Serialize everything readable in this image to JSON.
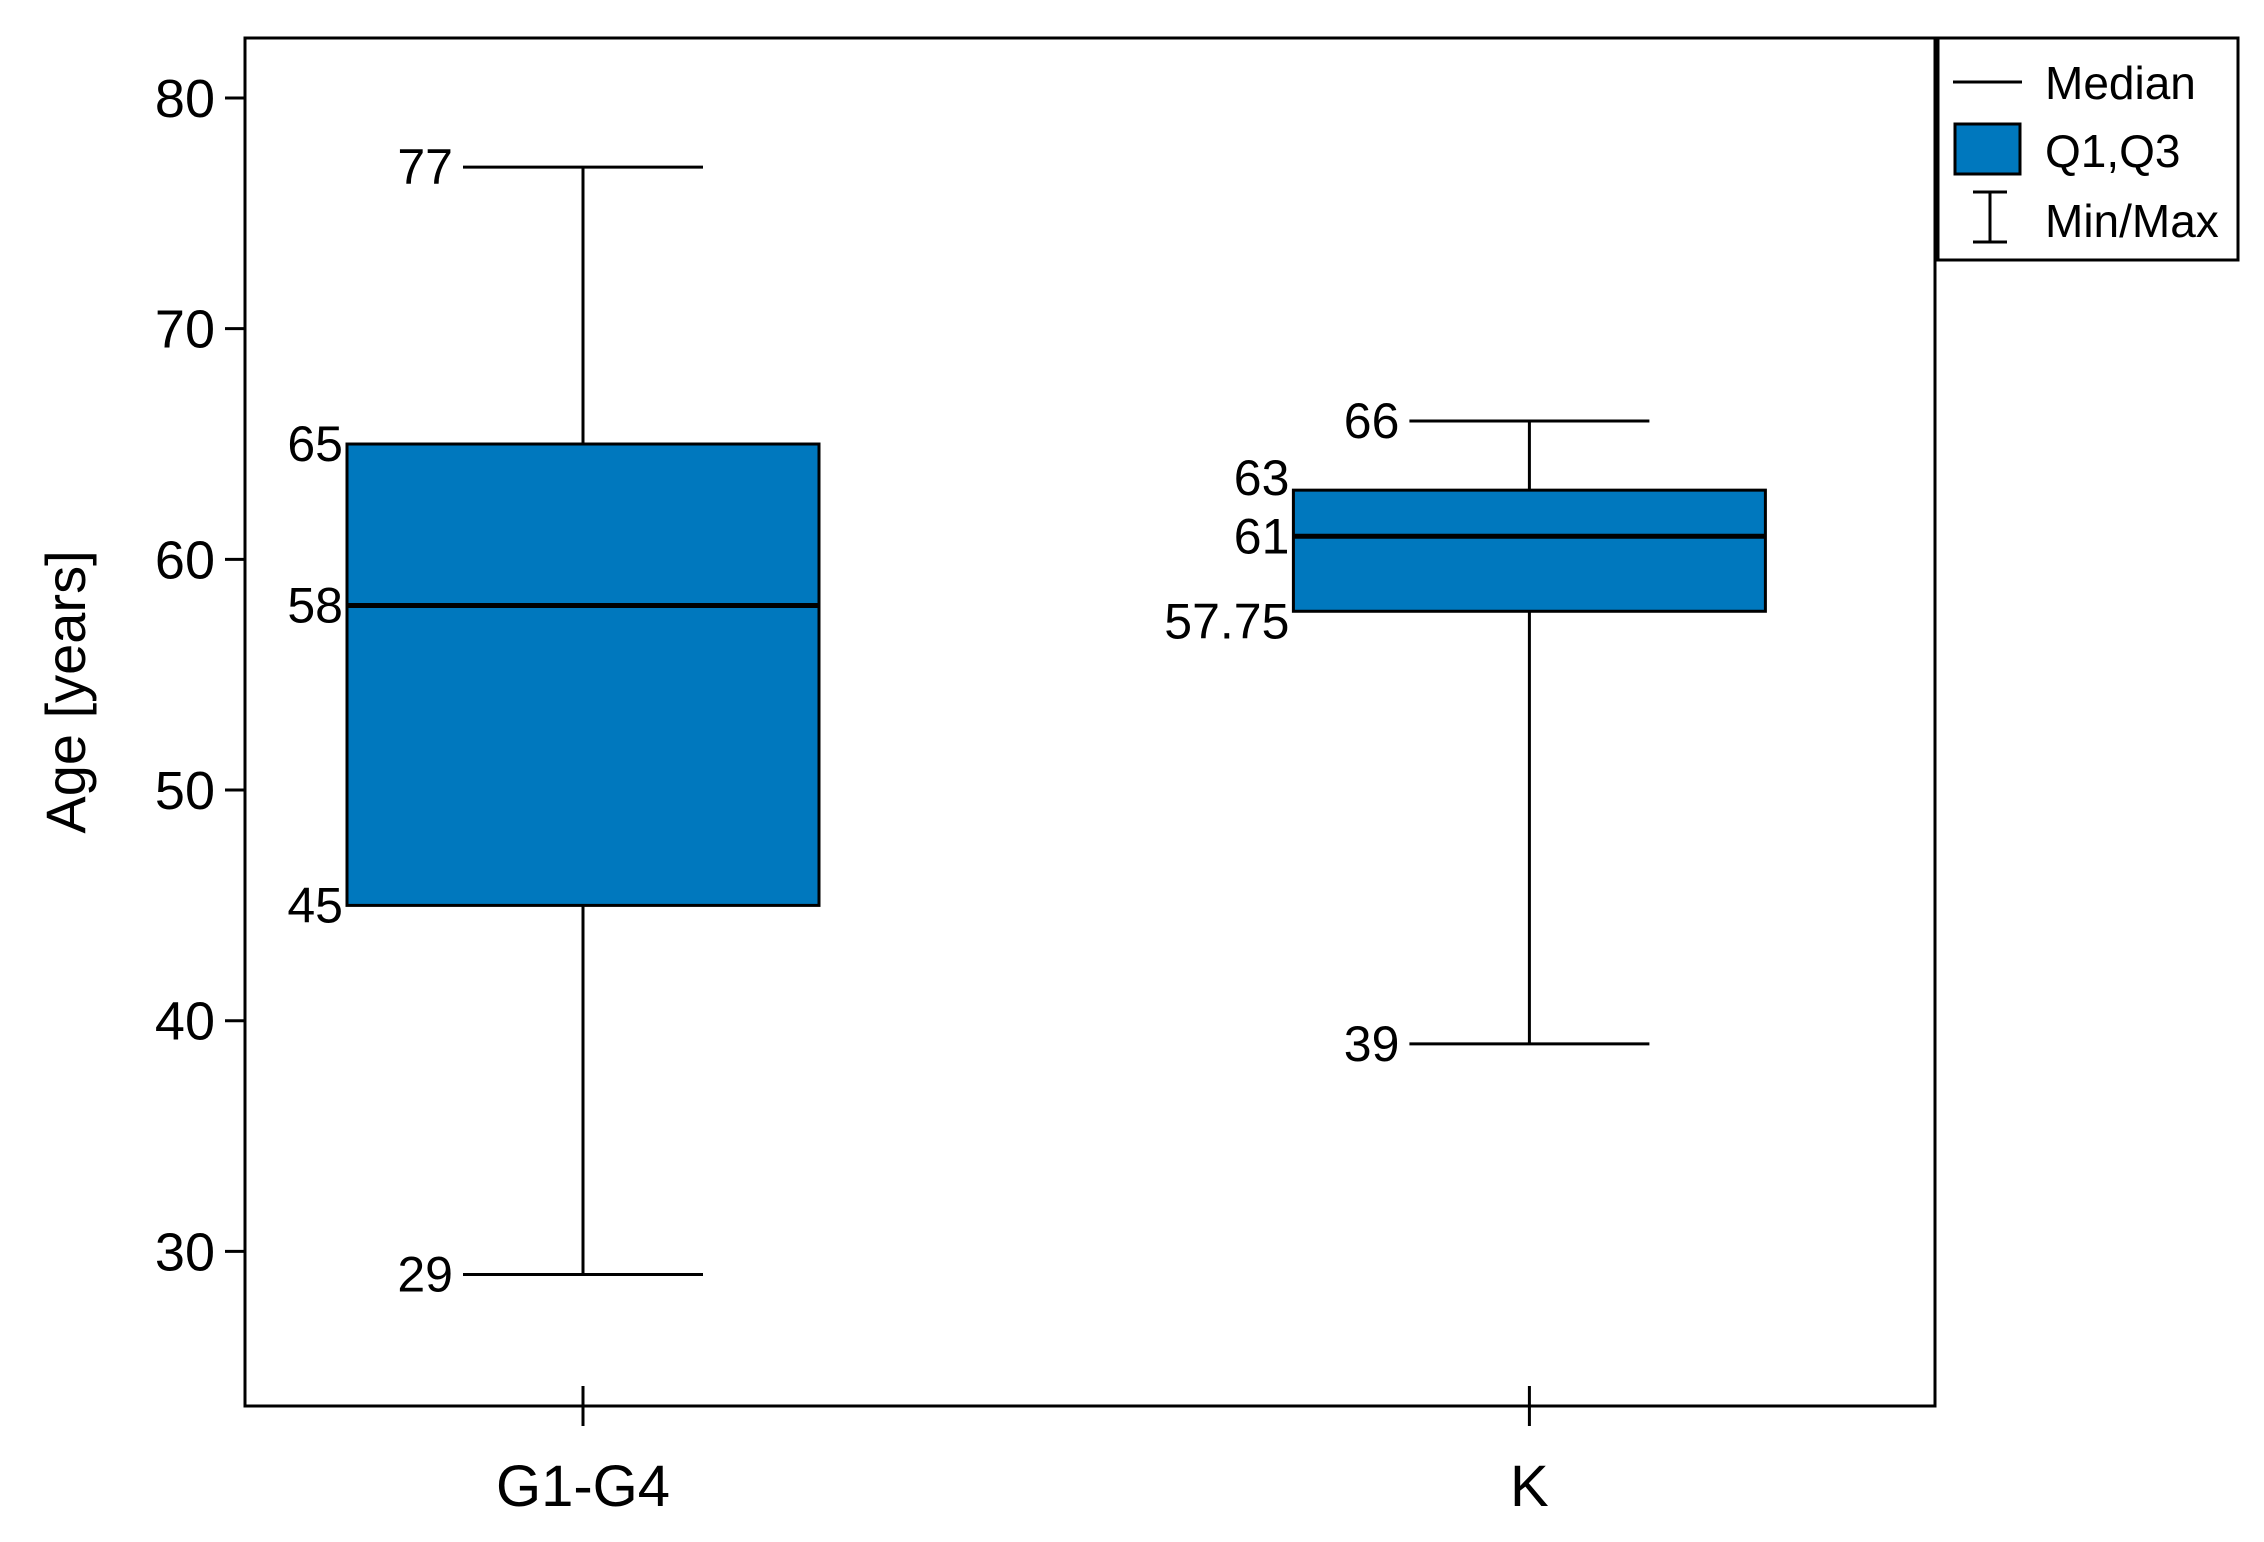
{
  "chart_data": {
    "type": "box",
    "title": "",
    "xlabel": "",
    "ylabel": "Age [years]",
    "ylim": [
      23.3,
      82.6
    ],
    "yticks": [
      30,
      40,
      50,
      60,
      70,
      80
    ],
    "grid": false,
    "legend_position": "top-right",
    "categories": [
      "G1-G4",
      "K"
    ],
    "boxes": [
      {
        "category": "G1-G4",
        "min": 29,
        "q1": 45,
        "median": 58,
        "q3": 65,
        "max": 77,
        "labels": {
          "min": "29",
          "q1": "45",
          "median": "58",
          "q3": "65",
          "max": "77"
        }
      },
      {
        "category": "K",
        "min": 39,
        "q1": 57.75,
        "median": 61,
        "q3": 63,
        "max": 66,
        "labels": {
          "min": "39",
          "q1": "57.75",
          "median": "61",
          "q3": "63",
          "max": "66"
        }
      }
    ],
    "legend": [
      {
        "key": "median",
        "label": "Median"
      },
      {
        "key": "box",
        "label": "Q1,Q3"
      },
      {
        "key": "whisker",
        "label": "Min/Max"
      }
    ],
    "colors": {
      "box_fill": "#0078BE",
      "line": "#000000"
    }
  }
}
